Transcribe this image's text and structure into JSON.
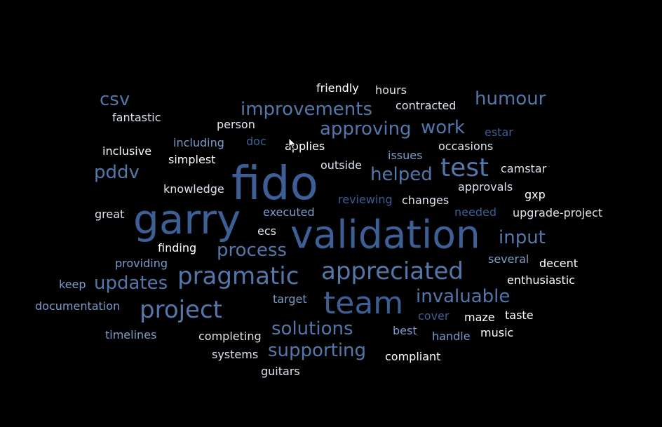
{
  "palette": {
    "background": "#000000",
    "blue_dark": "#3d5f95",
    "blue_mid": "#5477ab",
    "blue_light": "#7b9ccb",
    "light_gray": "#dce3ee",
    "white": "#ffffff"
  },
  "words": [
    {
      "text": "fido",
      "color": "blue_dark"
    },
    {
      "text": "validation",
      "color": "blue_dark"
    },
    {
      "text": "garry",
      "color": "blue_dark"
    },
    {
      "text": "team",
      "color": "blue_dark"
    },
    {
      "text": "project",
      "color": "blue_mid"
    },
    {
      "text": "appreciated",
      "color": "blue_mid"
    },
    {
      "text": "pragmatic",
      "color": "blue_mid"
    },
    {
      "text": "test",
      "color": "blue_mid"
    },
    {
      "text": "improvements",
      "color": "blue_mid"
    },
    {
      "text": "humour",
      "color": "blue_mid"
    },
    {
      "text": "approving",
      "color": "blue_mid"
    },
    {
      "text": "work",
      "color": "blue_mid"
    },
    {
      "text": "helped",
      "color": "blue_mid"
    },
    {
      "text": "pddv",
      "color": "blue_mid"
    },
    {
      "text": "csv",
      "color": "blue_mid"
    },
    {
      "text": "process",
      "color": "blue_mid"
    },
    {
      "text": "input",
      "color": "blue_mid"
    },
    {
      "text": "updates",
      "color": "blue_mid"
    },
    {
      "text": "invaluable",
      "color": "blue_mid"
    },
    {
      "text": "solutions",
      "color": "blue_mid"
    },
    {
      "text": "supporting",
      "color": "blue_mid"
    },
    {
      "text": "friendly",
      "color": "white"
    },
    {
      "text": "hours",
      "color": "light_gray"
    },
    {
      "text": "contracted",
      "color": "light_gray"
    },
    {
      "text": "fantastic",
      "color": "light_gray"
    },
    {
      "text": "person",
      "color": "light_gray"
    },
    {
      "text": "estar",
      "color": "blue_dark"
    },
    {
      "text": "inclusive",
      "color": "white"
    },
    {
      "text": "including",
      "color": "blue_light"
    },
    {
      "text": "doc",
      "color": "blue_dark"
    },
    {
      "text": "applies",
      "color": "white"
    },
    {
      "text": "occasions",
      "color": "light_gray"
    },
    {
      "text": "issues",
      "color": "blue_light"
    },
    {
      "text": "simplest",
      "color": "white"
    },
    {
      "text": "outside",
      "color": "light_gray"
    },
    {
      "text": "camstar",
      "color": "light_gray"
    },
    {
      "text": "knowledge",
      "color": "light_gray"
    },
    {
      "text": "approvals",
      "color": "light_gray"
    },
    {
      "text": "gxp",
      "color": "white"
    },
    {
      "text": "reviewing",
      "color": "blue_dark"
    },
    {
      "text": "changes",
      "color": "light_gray"
    },
    {
      "text": "great",
      "color": "light_gray"
    },
    {
      "text": "executed",
      "color": "blue_light"
    },
    {
      "text": "needed",
      "color": "blue_dark"
    },
    {
      "text": "upgrade-project",
      "color": "light_gray"
    },
    {
      "text": "ecs",
      "color": "light_gray"
    },
    {
      "text": "finding",
      "color": "white"
    },
    {
      "text": "providing",
      "color": "blue_light"
    },
    {
      "text": "several",
      "color": "blue_light"
    },
    {
      "text": "decent",
      "color": "white"
    },
    {
      "text": "keep",
      "color": "blue_light"
    },
    {
      "text": "enthusiastic",
      "color": "white"
    },
    {
      "text": "target",
      "color": "blue_light"
    },
    {
      "text": "documentation",
      "color": "blue_light"
    },
    {
      "text": "cover",
      "color": "blue_dark"
    },
    {
      "text": "maze",
      "color": "white"
    },
    {
      "text": "taste",
      "color": "white"
    },
    {
      "text": "timelines",
      "color": "blue_light"
    },
    {
      "text": "completing",
      "color": "light_gray"
    },
    {
      "text": "best",
      "color": "blue_light"
    },
    {
      "text": "handle",
      "color": "blue_light"
    },
    {
      "text": "music",
      "color": "white"
    },
    {
      "text": "systems",
      "color": "light_gray"
    },
    {
      "text": "compliant",
      "color": "white"
    },
    {
      "text": "guitars",
      "color": "light_gray"
    }
  ]
}
